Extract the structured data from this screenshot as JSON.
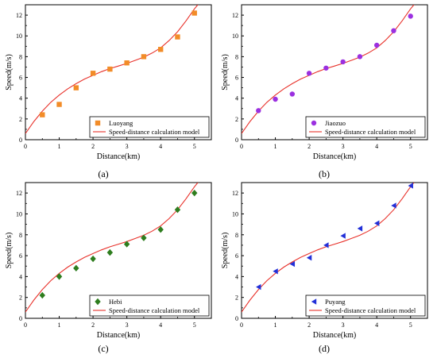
{
  "chart_data": [
    {
      "type": "scatter",
      "panel_label": "(a)",
      "xlabel": "Distance(km)",
      "ylabel": "Speed(m/s)",
      "xlim": [
        0,
        5.5
      ],
      "ylim": [
        0,
        13
      ],
      "xticks": [
        "0",
        "1",
        "2",
        "3",
        "4",
        "5"
      ],
      "yticks": [
        "0",
        "2",
        "4",
        "6",
        "8",
        "10",
        "12"
      ],
      "legend_position": "bottom-right",
      "series": [
        {
          "name": "Luoyang",
          "marker": "square",
          "color": "#f28c28",
          "x": [
            0.5,
            1.0,
            1.5,
            2.0,
            2.5,
            3.0,
            3.5,
            4.0,
            4.5,
            5.0
          ],
          "y": [
            2.4,
            3.4,
            5.0,
            6.4,
            6.8,
            7.4,
            8.0,
            8.7,
            9.9,
            12.2
          ]
        },
        {
          "name": "Speed-distance calculation model",
          "line": true,
          "color": "#e8312a",
          "x": [
            0,
            0.25,
            0.5,
            0.75,
            1.0,
            1.25,
            1.5,
            1.75,
            2.0,
            2.25,
            2.5,
            2.75,
            3.0,
            3.25,
            3.5,
            3.75,
            4.0,
            4.25,
            4.5,
            4.75,
            5.0,
            5.1
          ],
          "y": [
            0.6,
            1.75,
            2.75,
            3.6,
            4.3,
            4.9,
            5.4,
            5.85,
            6.2,
            6.55,
            6.85,
            7.1,
            7.35,
            7.65,
            7.95,
            8.35,
            8.85,
            9.55,
            10.4,
            11.45,
            12.6,
            13.0
          ]
        }
      ]
    },
    {
      "type": "scatter",
      "panel_label": "(b)",
      "xlabel": "Distance(km)",
      "ylabel": "Speed(m/s)",
      "xlim": [
        0,
        5.5
      ],
      "ylim": [
        0,
        13
      ],
      "xticks": [
        "0",
        "1",
        "2",
        "3",
        "4",
        "5"
      ],
      "yticks": [
        "0",
        "2",
        "4",
        "6",
        "8",
        "10",
        "12"
      ],
      "legend_position": "bottom-right",
      "series": [
        {
          "name": "Jiaozuo",
          "marker": "circle",
          "color": "#9b30e0",
          "x": [
            0.5,
            1.0,
            1.5,
            2.0,
            2.5,
            3.0,
            3.5,
            4.0,
            4.5,
            5.0
          ],
          "y": [
            2.8,
            3.9,
            4.4,
            6.4,
            6.9,
            7.5,
            8.0,
            9.1,
            10.5,
            11.9
          ]
        },
        {
          "name": "Speed-distance calculation model",
          "line": true,
          "color": "#e8312a",
          "x": [
            0,
            0.25,
            0.5,
            0.75,
            1.0,
            1.25,
            1.5,
            1.75,
            2.0,
            2.25,
            2.5,
            2.75,
            3.0,
            3.25,
            3.5,
            3.75,
            4.0,
            4.25,
            4.5,
            4.75,
            5.0,
            5.1
          ],
          "y": [
            0.6,
            1.75,
            2.75,
            3.6,
            4.3,
            4.9,
            5.4,
            5.85,
            6.2,
            6.55,
            6.85,
            7.1,
            7.35,
            7.65,
            7.95,
            8.35,
            8.85,
            9.55,
            10.4,
            11.45,
            12.6,
            13.0
          ]
        }
      ]
    },
    {
      "type": "scatter",
      "panel_label": "(c)",
      "xlabel": "Distance(km)",
      "ylabel": "Speed(m/s)",
      "xlim": [
        0,
        5.5
      ],
      "ylim": [
        0,
        13
      ],
      "xticks": [
        "0",
        "1",
        "2",
        "3",
        "4",
        "5"
      ],
      "yticks": [
        "0",
        "2",
        "4",
        "6",
        "8",
        "10",
        "12"
      ],
      "legend_position": "bottom-right",
      "series": [
        {
          "name": "Hebi",
          "marker": "diamond",
          "color": "#2e7d1e",
          "x": [
            0.5,
            1.0,
            1.5,
            2.0,
            2.5,
            3.0,
            3.5,
            4.0,
            4.5,
            5.0
          ],
          "y": [
            2.2,
            4.0,
            4.8,
            5.7,
            6.3,
            7.1,
            7.7,
            8.5,
            10.4,
            12.0
          ]
        },
        {
          "name": "Speed-distance calculation model",
          "line": true,
          "color": "#e8312a",
          "x": [
            0,
            0.25,
            0.5,
            0.75,
            1.0,
            1.25,
            1.5,
            1.75,
            2.0,
            2.25,
            2.5,
            2.75,
            3.0,
            3.25,
            3.5,
            3.75,
            4.0,
            4.25,
            4.5,
            4.75,
            5.0,
            5.1
          ],
          "y": [
            0.6,
            1.75,
            2.75,
            3.6,
            4.3,
            4.9,
            5.4,
            5.85,
            6.2,
            6.55,
            6.85,
            7.1,
            7.35,
            7.65,
            7.95,
            8.35,
            8.85,
            9.55,
            10.4,
            11.45,
            12.6,
            13.0
          ]
        }
      ]
    },
    {
      "type": "scatter",
      "panel_label": "(d)",
      "xlabel": "Distance(km)",
      "ylabel": "Speed(m/s)",
      "xlim": [
        0,
        5.5
      ],
      "ylim": [
        0,
        13
      ],
      "xticks": [
        "0",
        "1",
        "2",
        "3",
        "4",
        "5"
      ],
      "yticks": [
        "0",
        "2",
        "4",
        "6",
        "8",
        "10",
        "12"
      ],
      "legend_position": "bottom-right",
      "series": [
        {
          "name": "Puyang",
          "marker": "triangle-left",
          "color": "#2230d8",
          "x": [
            0.5,
            1.0,
            1.5,
            2.0,
            2.5,
            3.0,
            3.5,
            4.0,
            4.5,
            5.0
          ],
          "y": [
            3.0,
            4.5,
            5.2,
            5.8,
            7.0,
            7.9,
            8.6,
            9.1,
            10.8,
            12.7
          ]
        },
        {
          "name": "Speed-distance calculation model",
          "line": true,
          "color": "#e8312a",
          "x": [
            0,
            0.25,
            0.5,
            0.75,
            1.0,
            1.25,
            1.5,
            1.75,
            2.0,
            2.25,
            2.5,
            2.75,
            3.0,
            3.25,
            3.5,
            3.75,
            4.0,
            4.25,
            4.5,
            4.75,
            5.0,
            5.1
          ],
          "y": [
            0.6,
            1.75,
            2.75,
            3.6,
            4.3,
            4.9,
            5.4,
            5.85,
            6.2,
            6.55,
            6.85,
            7.1,
            7.35,
            7.65,
            7.95,
            8.35,
            8.85,
            9.55,
            10.4,
            11.45,
            12.6,
            13.0
          ]
        }
      ]
    }
  ]
}
